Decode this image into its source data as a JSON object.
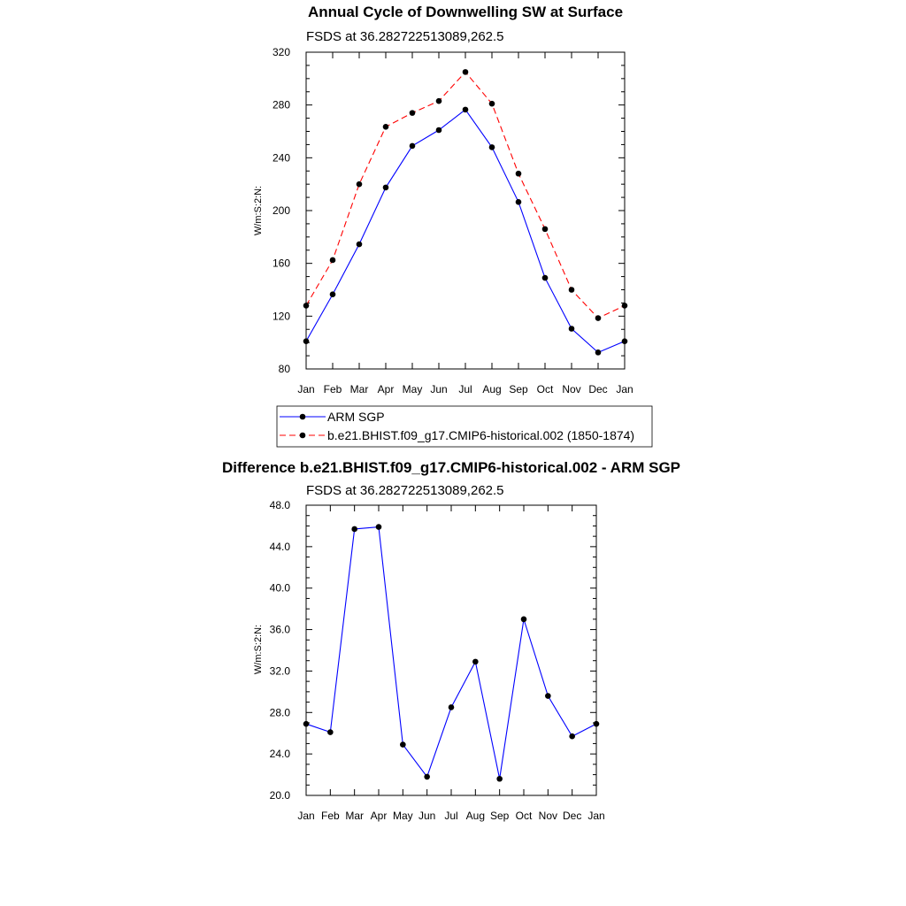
{
  "chart_data": [
    {
      "type": "line",
      "title": "Annual Cycle of Downwelling SW at Surface",
      "subtitle": "FSDS at 36.282722513089,262.5",
      "ylabel": "W/m:S:2:N:",
      "xlabel": "",
      "categories": [
        "Jan",
        "Feb",
        "Mar",
        "Apr",
        "May",
        "Jun",
        "Jul",
        "Aug",
        "Sep",
        "Oct",
        "Nov",
        "Dec",
        "Jan"
      ],
      "ylim": [
        80,
        320
      ],
      "yticks": [
        "80",
        "120",
        "160",
        "200",
        "240",
        "280",
        "320"
      ],
      "grid": false,
      "legend_position": "bottom",
      "series": [
        {
          "name": "ARM SGP",
          "values": [
            101,
            136.5,
            174.5,
            217.5,
            249,
            261,
            276.5,
            248,
            206.5,
            149,
            110.5,
            92.5,
            101
          ],
          "color": "#0000ff",
          "dash": "solid",
          "marker": "circle"
        },
        {
          "name": "b.e21.BHIST.f09_g17.CMIP6-historical.002 (1850-1874)",
          "values": [
            128,
            162.5,
            220,
            263.5,
            274,
            283,
            305,
            281,
            228,
            186,
            140,
            118.5,
            128
          ],
          "color": "#ff0000",
          "dash": "dashed",
          "marker": "circle"
        }
      ]
    },
    {
      "type": "line",
      "title": "Difference b.e21.BHIST.f09_g17.CMIP6-historical.002 - ARM SGP",
      "subtitle": "FSDS at 36.282722513089,262.5",
      "ylabel": "W/m:S:2:N:",
      "xlabel": "",
      "categories": [
        "Jan",
        "Feb",
        "Mar",
        "Apr",
        "May",
        "Jun",
        "Jul",
        "Aug",
        "Sep",
        "Oct",
        "Nov",
        "Dec",
        "Jan"
      ],
      "ylim": [
        20,
        48
      ],
      "yticks": [
        "20.0",
        "24.0",
        "28.0",
        "32.0",
        "36.0",
        "40.0",
        "44.0",
        "48.0"
      ],
      "grid": false,
      "series": [
        {
          "values": [
            26.9,
            26.1,
            45.7,
            45.9,
            24.9,
            21.8,
            28.5,
            32.9,
            21.6,
            37.0,
            29.6,
            25.7,
            26.9
          ],
          "color": "#0000ff",
          "dash": "solid",
          "marker": "circle"
        }
      ]
    }
  ]
}
